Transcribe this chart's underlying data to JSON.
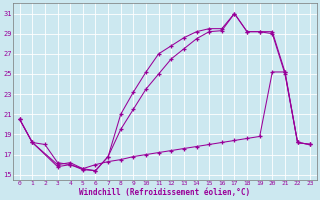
{
  "xlabel": "Windchill (Refroidissement éolien,°C)",
  "bg_color": "#cce8f0",
  "line_color": "#990099",
  "grid_color": "#ffffff",
  "xlim": [
    -0.5,
    23.5
  ],
  "ylim": [
    14.5,
    32
  ],
  "yticks": [
    15,
    17,
    19,
    21,
    23,
    25,
    27,
    29,
    31
  ],
  "xticks": [
    0,
    1,
    2,
    3,
    4,
    5,
    6,
    7,
    8,
    9,
    10,
    11,
    12,
    13,
    14,
    15,
    16,
    17,
    18,
    19,
    20,
    21,
    22,
    23
  ],
  "line1_x": [
    0,
    1,
    3,
    4,
    5,
    6,
    7,
    8,
    9,
    10,
    11,
    12,
    13,
    14,
    15,
    16,
    17,
    18,
    19,
    20,
    21,
    22,
    23
  ],
  "line1_y": [
    20.5,
    18.2,
    15.8,
    16.0,
    15.5,
    15.4,
    16.8,
    21.0,
    23.2,
    25.2,
    27.0,
    27.8,
    28.6,
    29.2,
    29.5,
    29.5,
    31.0,
    29.2,
    29.2,
    29.2,
    25.2,
    18.2,
    18.0
  ],
  "line2_x": [
    0,
    1,
    3,
    4,
    5,
    6,
    7,
    8,
    9,
    10,
    11,
    12,
    13,
    14,
    15,
    16,
    17,
    18,
    19,
    20,
    21,
    22,
    23
  ],
  "line2_y": [
    20.5,
    18.2,
    16.0,
    16.2,
    15.6,
    15.4,
    16.8,
    19.5,
    21.5,
    23.5,
    25.0,
    26.5,
    27.5,
    28.5,
    29.2,
    29.3,
    31.0,
    29.2,
    29.2,
    29.0,
    25.0,
    18.2,
    18.0
  ],
  "line3_x": [
    0,
    1,
    2,
    3,
    4,
    5,
    6,
    7,
    8,
    9,
    10,
    11,
    12,
    13,
    14,
    15,
    16,
    17,
    18,
    19,
    20,
    21,
    22,
    23
  ],
  "line3_y": [
    20.5,
    18.2,
    18.0,
    16.2,
    16.0,
    15.6,
    16.0,
    16.3,
    16.5,
    16.8,
    17.0,
    17.2,
    17.4,
    17.6,
    17.8,
    18.0,
    18.2,
    18.4,
    18.6,
    18.8,
    25.2,
    25.2,
    18.2,
    18.0
  ]
}
